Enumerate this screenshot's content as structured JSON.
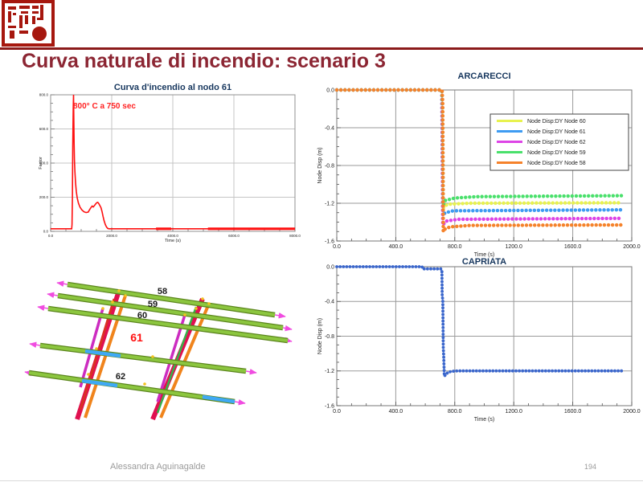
{
  "header": {
    "title": "Curva naturale di incendio: scenario 3",
    "accent_color": "#8B1A1A",
    "title_color": "#8C2633",
    "seal": "red-chinese-seal"
  },
  "footer": {
    "author": "Alessandra Aguinagalde",
    "page": "194"
  },
  "figure": {
    "name": "roof-structure-3d-model",
    "labels": {
      "beam58": "58",
      "beam59": "59",
      "beam60": "60",
      "beam61": "61",
      "beam62": "62"
    },
    "highlight_color": "#FF1010",
    "beam_color": "#8CC63F",
    "truss_color": "#E01050",
    "arrow_color": "#F04CE0",
    "link_color": "#3FA9F5"
  },
  "chart_data": [
    {
      "id": "fire",
      "type": "line",
      "title": "Curva d'incendio al nodo 61",
      "xlabel": "Time (s)",
      "ylabel": "Factor",
      "xlim": [
        0,
        8000
      ],
      "ylim": [
        0,
        800
      ],
      "xticks": [
        0,
        2000,
        4000,
        6000,
        8000
      ],
      "xtick_labels": [
        "0.0",
        "2000.0",
        "4000.0",
        "6000.0",
        "8000.0"
      ],
      "yticks": [
        0,
        200,
        400,
        600,
        800
      ],
      "ytick_labels": [
        "0.0",
        "200.0",
        "400.0",
        "600.0",
        "800.0"
      ],
      "x_minor": 500,
      "y_minor": 50,
      "grid": true,
      "legend": false,
      "annotation": {
        "text": "800° C  a  750 sec",
        "color": "#FF2222"
      },
      "series": [
        {
          "name": "Curva d'incendio al nodo 61",
          "color": "#FE1010",
          "width": 1.6,
          "points": [
            [
              0,
              15
            ],
            [
              690,
              15
            ],
            [
              700,
              40
            ],
            [
              712,
              200
            ],
            [
              725,
              500
            ],
            [
              740,
              720
            ],
            [
              750,
              800
            ],
            [
              758,
              680
            ],
            [
              768,
              520
            ],
            [
              780,
              420
            ],
            [
              795,
              350
            ],
            [
              815,
              285
            ],
            [
              840,
              235
            ],
            [
              870,
              195
            ],
            [
              910,
              165
            ],
            [
              960,
              142
            ],
            [
              1020,
              126
            ],
            [
              1090,
              115
            ],
            [
              1160,
              110
            ],
            [
              1230,
              113
            ],
            [
              1280,
              128
            ],
            [
              1320,
              140
            ],
            [
              1360,
              148
            ],
            [
              1395,
              143
            ],
            [
              1430,
              150
            ],
            [
              1470,
              160
            ],
            [
              1510,
              168
            ],
            [
              1545,
              170
            ],
            [
              1580,
              162
            ],
            [
              1615,
              150
            ],
            [
              1650,
              138
            ],
            [
              1685,
              115
            ],
            [
              1715,
              88
            ],
            [
              1750,
              62
            ],
            [
              1790,
              40
            ],
            [
              1830,
              26
            ],
            [
              1870,
              17
            ],
            [
              1910,
              15
            ],
            [
              8000,
              15
            ]
          ]
        },
        {
          "name": "",
          "no_legend": true,
          "color": "#FE1010",
          "width": 3.2,
          "points": [
            [
              3450,
              15
            ],
            [
              3950,
              15
            ]
          ]
        },
        {
          "name": "",
          "no_legend": true,
          "color": "#FE1010",
          "width": 3.2,
          "points": [
            [
              5150,
              15
            ],
            [
              8000,
              15
            ]
          ]
        }
      ]
    },
    {
      "id": "arcarecci",
      "type": "line",
      "title": "ARCARECCI",
      "xlabel": "Time (s)",
      "ylabel": "Node Disp  (m)",
      "xlim": [
        0,
        2000
      ],
      "ylim": [
        -1.6,
        0
      ],
      "xticks": [
        0,
        400,
        800,
        1200,
        1600,
        2000
      ],
      "xtick_labels": [
        "0.0",
        "400.0",
        "800.0",
        "1200.0",
        "1600.0",
        "2000.0"
      ],
      "yticks": [
        -1.6,
        -1.2,
        -0.8,
        -0.4,
        0
      ],
      "ytick_labels": [
        "-1.6",
        "-1.2",
        "-0.8",
        "-0.4",
        "0.0"
      ],
      "x_minor": 100,
      "y_minor": 0.1,
      "grid": true,
      "legend": true,
      "series": [
        {
          "name": "Node Disp:DY Node 60",
          "color": "#E8F24E",
          "width": 4.4,
          "dotted": true,
          "points": [
            [
              0,
              0
            ],
            [
              713,
              0
            ],
            [
              719,
              -1.26
            ],
            [
              733,
              -1.225
            ],
            [
              760,
              -1.21
            ],
            [
              900,
              -1.2
            ],
            [
              1930,
              -1.195
            ]
          ]
        },
        {
          "name": "Node Disp:DY Node 61",
          "color": "#3E9BF2",
          "width": 4.4,
          "dotted": true,
          "points": [
            [
              0,
              0
            ],
            [
              713,
              0
            ],
            [
              719,
              -1.33
            ],
            [
              735,
              -1.3
            ],
            [
              790,
              -1.28
            ],
            [
              1930,
              -1.27
            ]
          ]
        },
        {
          "name": "Node Disp:DY Node 62",
          "color": "#DD44E6",
          "width": 4.4,
          "dotted": true,
          "points": [
            [
              0,
              0
            ],
            [
              713,
              0
            ],
            [
              719,
              -1.43
            ],
            [
              740,
              -1.39
            ],
            [
              820,
              -1.37
            ],
            [
              1930,
              -1.36
            ]
          ]
        },
        {
          "name": "Node Disp:DY Node 59",
          "color": "#49E06B",
          "width": 4.4,
          "dotted": true,
          "points": [
            [
              0,
              0
            ],
            [
              713,
              0
            ],
            [
              717,
              -0.18
            ],
            [
              721,
              -1.22
            ],
            [
              737,
              -1.17
            ],
            [
              800,
              -1.145
            ],
            [
              950,
              -1.13
            ],
            [
              1930,
              -1.12
            ]
          ]
        },
        {
          "name": "Node Disp:DY Node 58",
          "color": "#F5822B",
          "width": 4.4,
          "dotted": true,
          "points": [
            [
              0,
              0
            ],
            [
              714,
              0
            ],
            [
              718,
              -0.14
            ],
            [
              722,
              -1.5
            ],
            [
              736,
              -1.47
            ],
            [
              770,
              -1.45
            ],
            [
              900,
              -1.435
            ],
            [
              1930,
              -1.43
            ]
          ]
        }
      ]
    },
    {
      "id": "capriata",
      "type": "line",
      "title": "CAPRIATA",
      "xlabel": "Time (s)",
      "ylabel": "Node Disp  (m)",
      "xlim": [
        0,
        2000
      ],
      "ylim": [
        -1.6,
        0
      ],
      "xticks": [
        0,
        400,
        800,
        1200,
        1600,
        2000
      ],
      "xtick_labels": [
        "0.0",
        "400.0",
        "800.0",
        "1200.0",
        "1600.0",
        "2000.0"
      ],
      "yticks": [
        -1.6,
        -1.2,
        -0.8,
        -0.4,
        0
      ],
      "ytick_labels": [
        "-1.6",
        "-1.2",
        "-0.8",
        "-0.4",
        "0.0"
      ],
      "x_minor": 100,
      "y_minor": 0.1,
      "grid": true,
      "legend": false,
      "series": [
        {
          "name": "Node Disp:DY",
          "color": "#3A66CC",
          "width": 3.8,
          "dotted": true,
          "gap": 4,
          "points": [
            [
              0,
              0
            ],
            [
              578,
              0
            ],
            [
              583,
              -0.025
            ],
            [
              706,
              -0.025
            ],
            [
              713,
              -0.05
            ],
            [
              715,
              -0.35
            ],
            [
              719,
              -0.37
            ],
            [
              722,
              -0.93
            ],
            [
              725,
              -1.02
            ],
            [
              729,
              -1.26
            ],
            [
              738,
              -1.245
            ],
            [
              752,
              -1.22
            ],
            [
              775,
              -1.205
            ],
            [
              820,
              -1.2
            ],
            [
              1930,
              -1.2
            ]
          ]
        }
      ]
    }
  ]
}
